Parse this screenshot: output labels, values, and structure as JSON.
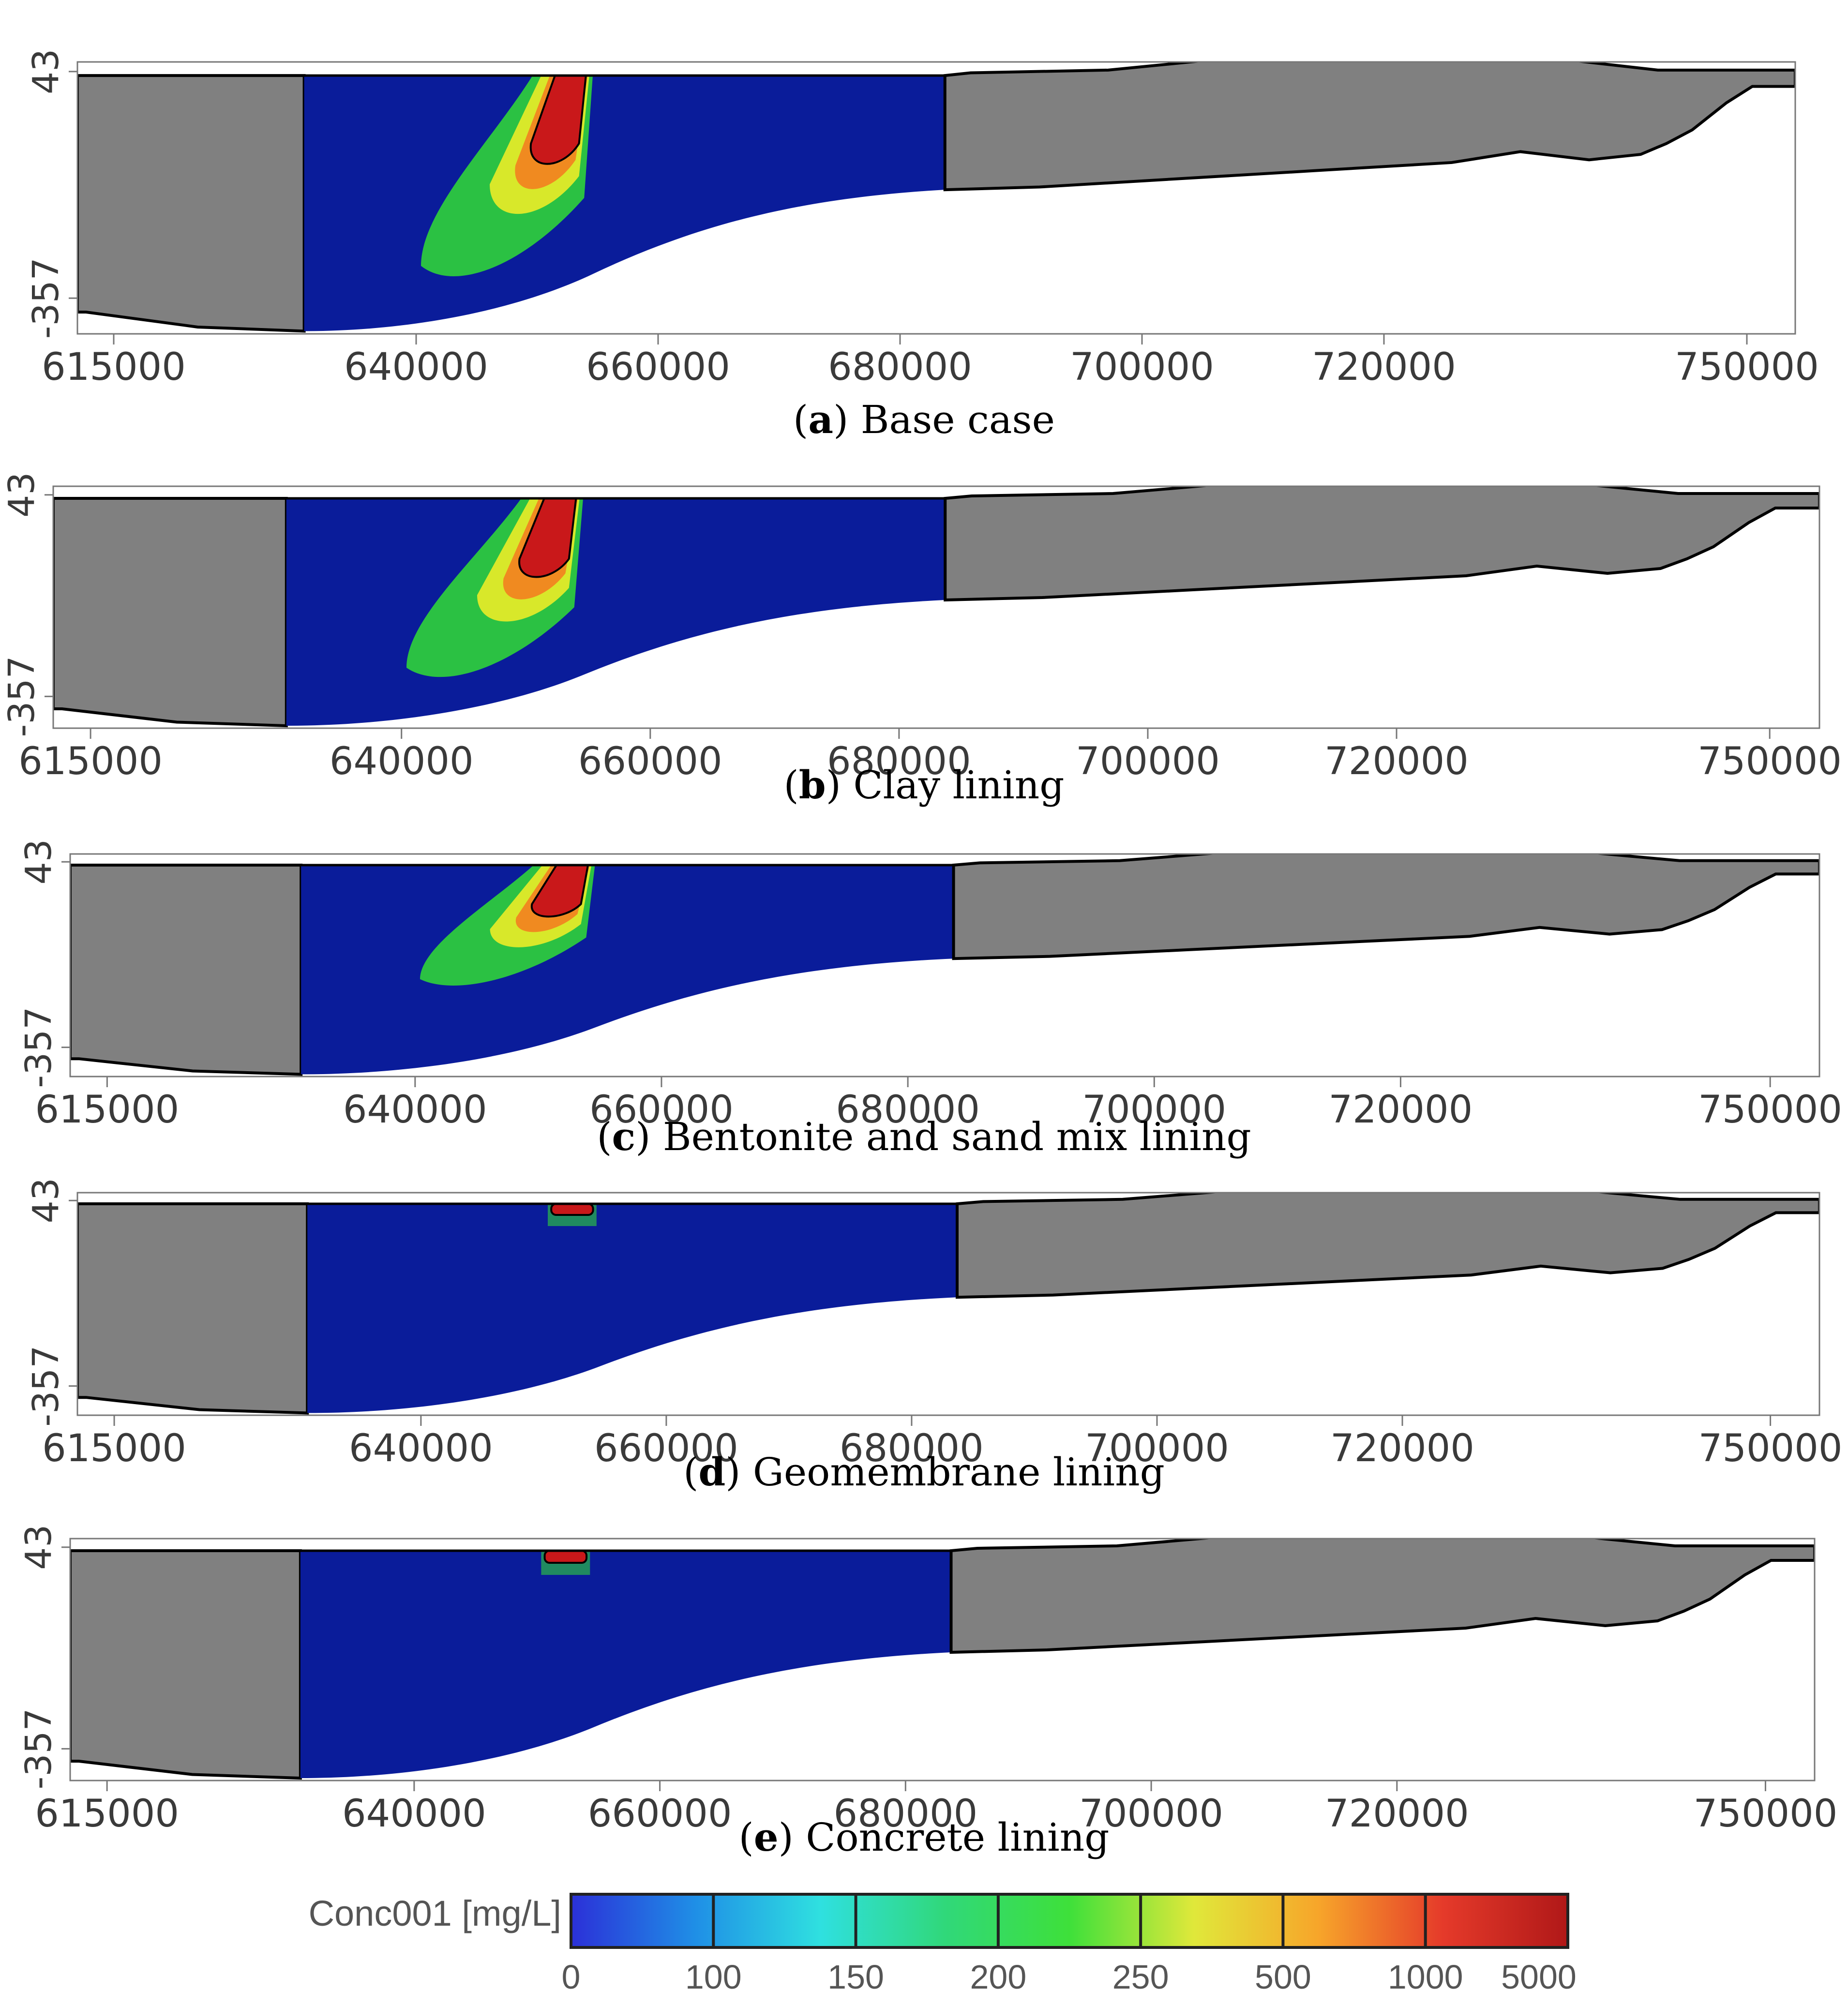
{
  "panels": [
    {
      "letter": "a",
      "caption": "Base case",
      "plume": "large"
    },
    {
      "letter": "b",
      "caption": "Clay lining",
      "plume": "large"
    },
    {
      "letter": "c",
      "caption": "Bentonite and sand mix lining",
      "plume": "medium"
    },
    {
      "letter": "d",
      "caption": "Geomembrane lining",
      "plume": "small"
    },
    {
      "letter": "e",
      "caption": "Concrete lining",
      "plume": "small"
    }
  ],
  "chart_data": {
    "type": "heatmap",
    "x_ticks": [
      "615000",
      "640000",
      "660000",
      "680000",
      "700000",
      "720000",
      "750000"
    ],
    "x_tick_values": [
      615000,
      640000,
      660000,
      680000,
      700000,
      720000,
      750000
    ],
    "xlim": [
      612000,
      754000
    ],
    "y_ticks": [
      "43",
      "-357"
    ],
    "y_tick_values": [
      43,
      -357
    ],
    "ylim": [
      -420,
      60
    ],
    "legend": {
      "title": "Conc001 [mg/L]",
      "labels": [
        "0",
        "100",
        "150",
        "200",
        "250",
        "500",
        "1000",
        "5000"
      ],
      "colors": [
        "#2b30d8",
        "#1f8fe6",
        "#2fe0e0",
        "#30d87a",
        "#3ee03a",
        "#e0e83a",
        "#f7a52a",
        "#e53a2a",
        "#b01818"
      ]
    },
    "colors": {
      "aquifer": "#0a1c9a",
      "inactive": "#808080",
      "plume_red": "#c9181a",
      "plume_orange": "#f08a20",
      "plume_yellow": "#d8e82a",
      "plume_green": "#2fd43a"
    }
  }
}
